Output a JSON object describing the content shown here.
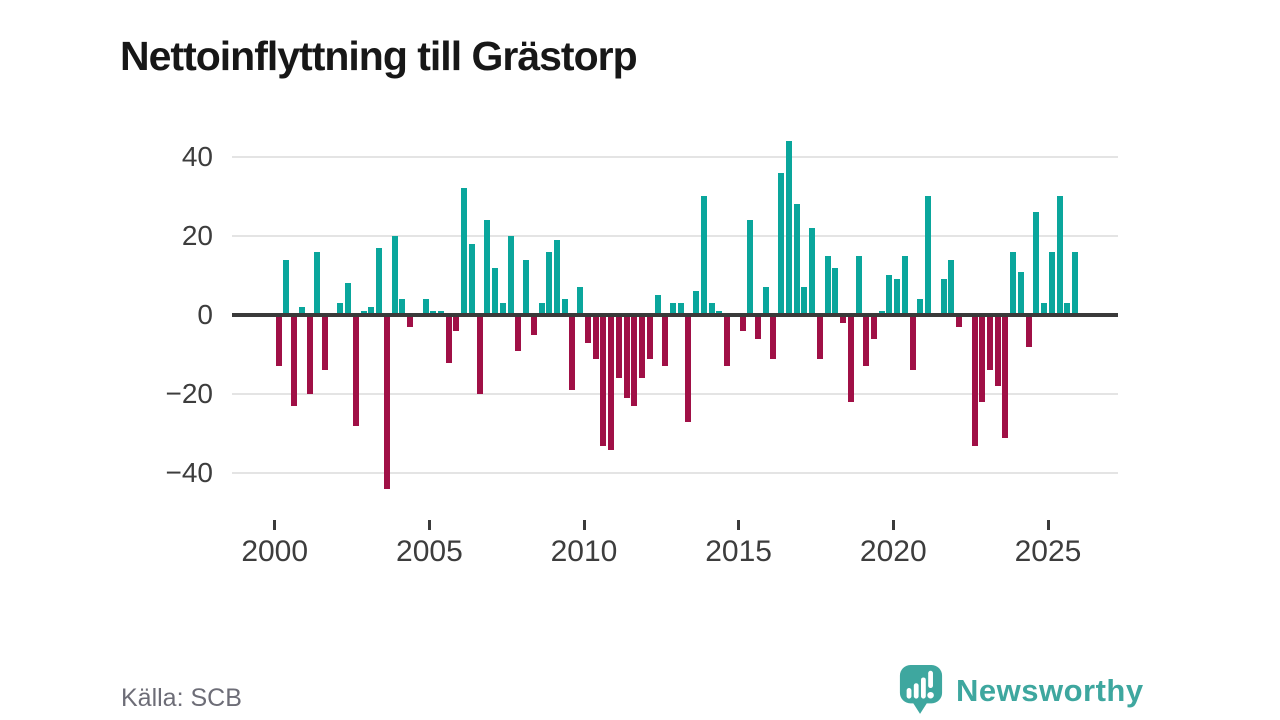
{
  "chart": {
    "title": "Nettoinflyttning till Grästorp",
    "source": "Källa: SCB"
  },
  "branding": {
    "logo_text": "Newsworthy",
    "logo_color": "#3ea79f"
  },
  "chart_data": {
    "type": "bar",
    "title": "Nettoinflyttning till Grästorp",
    "xlabel": "",
    "ylabel": "",
    "x_unit": "quarter",
    "grid": "horizontal",
    "legend": "none",
    "y_ticks": [
      -40,
      -20,
      0,
      20,
      40
    ],
    "ylim": [
      -47,
      47
    ],
    "x_tick_years": [
      2000,
      2005,
      2010,
      2015,
      2020,
      2025
    ],
    "colors": {
      "positive": "#0aa69c",
      "negative": "#a01046",
      "gridline": "#e4e4e4",
      "zero_line": "#3a3a3a",
      "axis_text": "#3d3d3d"
    },
    "series": [
      {
        "year": 2000,
        "q": [
          -13,
          14,
          -23,
          2
        ]
      },
      {
        "year": 2001,
        "q": [
          -20,
          16,
          -14,
          0
        ]
      },
      {
        "year": 2002,
        "q": [
          3,
          8,
          -28,
          1
        ]
      },
      {
        "year": 2003,
        "q": [
          2,
          17,
          -44,
          20
        ]
      },
      {
        "year": 2004,
        "q": [
          4,
          -3,
          0,
          4
        ]
      },
      {
        "year": 2005,
        "q": [
          1,
          1,
          -12,
          -4
        ]
      },
      {
        "year": 2006,
        "q": [
          32,
          18,
          -20,
          24
        ]
      },
      {
        "year": 2007,
        "q": [
          12,
          3,
          20,
          -9
        ]
      },
      {
        "year": 2008,
        "q": [
          14,
          -5,
          3,
          16
        ]
      },
      {
        "year": 2009,
        "q": [
          19,
          4,
          -19,
          7
        ]
      },
      {
        "year": 2010,
        "q": [
          -7,
          -11,
          -33,
          -34
        ]
      },
      {
        "year": 2011,
        "q": [
          -16,
          -21,
          -23,
          -16
        ]
      },
      {
        "year": 2012,
        "q": [
          -11,
          5,
          -13,
          3
        ]
      },
      {
        "year": 2013,
        "q": [
          3,
          -27,
          6,
          30
        ]
      },
      {
        "year": 2014,
        "q": [
          3,
          1,
          -13,
          0
        ]
      },
      {
        "year": 2015,
        "q": [
          -4,
          24,
          -6,
          7
        ]
      },
      {
        "year": 2016,
        "q": [
          -11,
          36,
          44,
          28
        ]
      },
      {
        "year": 2017,
        "q": [
          7,
          22,
          -11,
          15
        ]
      },
      {
        "year": 2018,
        "q": [
          12,
          -2,
          -22,
          15
        ]
      },
      {
        "year": 2019,
        "q": [
          -13,
          -6,
          1,
          10
        ]
      },
      {
        "year": 2020,
        "q": [
          9,
          15,
          -14,
          4
        ]
      },
      {
        "year": 2021,
        "q": [
          30,
          0,
          9,
          14
        ]
      },
      {
        "year": 2022,
        "q": [
          -3,
          0,
          -33,
          -22
        ]
      },
      {
        "year": 2023,
        "q": [
          -14,
          -18,
          -31,
          16
        ]
      },
      {
        "year": 2024,
        "q": [
          11,
          -8,
          26,
          3
        ]
      },
      {
        "year": 2025,
        "q": [
          16,
          30,
          3,
          16
        ]
      }
    ]
  }
}
